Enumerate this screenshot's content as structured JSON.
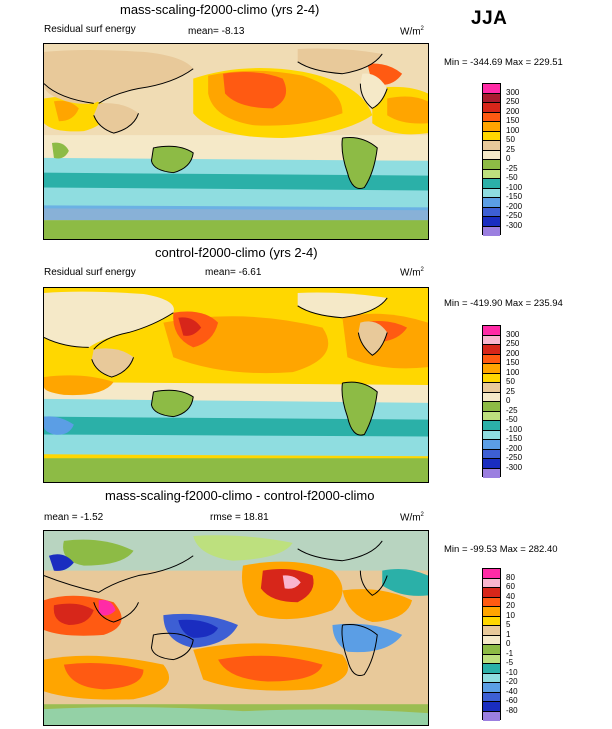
{
  "season": "JJA",
  "panels": [
    {
      "title": "mass-scaling-f2000-climo (yrs 2-4)",
      "left_label": "Residual surf energy",
      "stat_label": "mean=  -8.13",
      "units": "W/m",
      "units_exp": "2",
      "minmax": "Min = -344.69 Max = 229.51",
      "levels": [
        "300",
        "250",
        "200",
        "150",
        "100",
        "50",
        "25",
        "0",
        "-25",
        "-50",
        "-100",
        "-150",
        "-200",
        "-250",
        "-300"
      ],
      "colors": [
        "#ff2ba6",
        "#aa1b2e",
        "#d7261a",
        "#ff5a12",
        "#ffa500",
        "#ffd700",
        "#e8c99a",
        "#f5e9c8",
        "#8dbb45",
        "#bde07e",
        "#2bb0a8",
        "#8fdde0",
        "#5b9ee5",
        "#3d5fd4",
        "#1a2dc0",
        "#9b7fe0"
      ]
    },
    {
      "title": "control-f2000-climo (yrs 2-4)",
      "left_label": "Residual surf energy",
      "stat_label": "mean=  -6.61",
      "units": "W/m",
      "units_exp": "2",
      "minmax": "Min = -419.90 Max = 235.94",
      "levels": [
        "300",
        "250",
        "200",
        "150",
        "100",
        "50",
        "25",
        "0",
        "-25",
        "-50",
        "-100",
        "-150",
        "-200",
        "-250",
        "-300"
      ],
      "colors": [
        "#ff2ba6",
        "#f9b6cf",
        "#d7261a",
        "#ff5a12",
        "#ffa500",
        "#ffd700",
        "#e8c99a",
        "#f5e9c8",
        "#8dbb45",
        "#bde07e",
        "#2bb0a8",
        "#8fdde0",
        "#5b9ee5",
        "#3d5fd4",
        "#1a2dc0",
        "#9b7fe0"
      ]
    },
    {
      "title": "mass-scaling-f2000-climo - control-f2000-climo",
      "left_label": "mean =  -1.52",
      "stat_label": "rmse =  18.81",
      "units": "W/m",
      "units_exp": "2",
      "minmax": "Min = -99.53 Max = 282.40",
      "levels": [
        "80",
        "60",
        "40",
        "20",
        "10",
        "5",
        "1",
        "0",
        "-1",
        "-5",
        "-10",
        "-20",
        "-40",
        "-60",
        "-80"
      ],
      "colors": [
        "#ff2ba6",
        "#f9b6cf",
        "#d7261a",
        "#ff5a12",
        "#ffa500",
        "#ffd700",
        "#e8c99a",
        "#f5e9c8",
        "#8dbb45",
        "#bde07e",
        "#2bb0a8",
        "#8fdde0",
        "#5b9ee5",
        "#3d5fd4",
        "#1a2dc0",
        "#9b7fe0"
      ]
    }
  ]
}
